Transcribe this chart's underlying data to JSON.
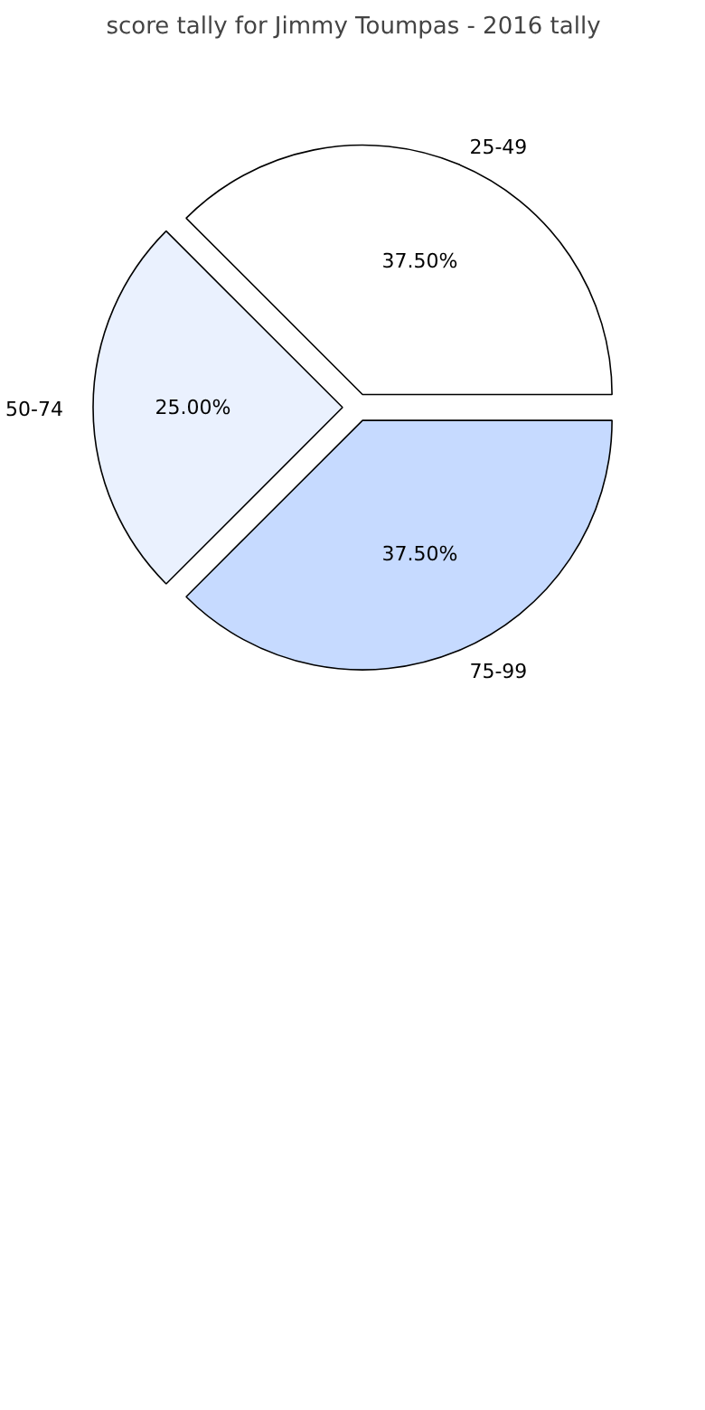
{
  "chart_data": {
    "type": "pie",
    "title": "score tally for Jimmy Toumpas - 2016 tally",
    "categories": [
      "25-49",
      "50-74",
      "75-99"
    ],
    "values": [
      37.5,
      25,
      37.5
    ],
    "colors": [
      "#ffffff",
      "#eaf1fe",
      "#c6daff"
    ],
    "value_labels": [
      "37.50%",
      "25.00%",
      "37.50%"
    ]
  }
}
